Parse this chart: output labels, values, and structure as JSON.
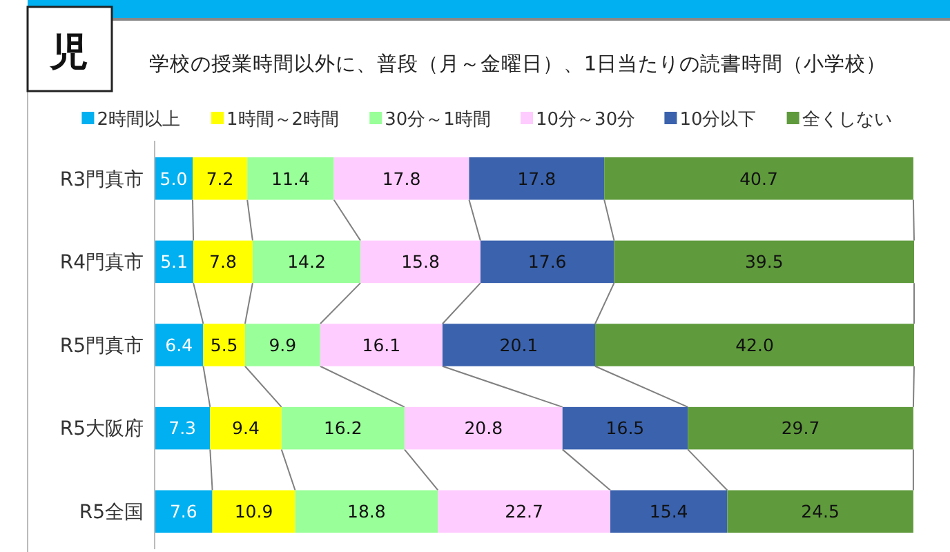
{
  "chart_data": {
    "type": "bar",
    "orientation": "horizontal",
    "stacked": true,
    "legend": "top",
    "title": "学校の授業時間以外に、普段（月～金曜日）、1日当たりの読書時間（小学校）",
    "annotations": [
      "児"
    ],
    "categories": [
      "R3門真市",
      "R4門真市",
      "R5門真市",
      "R5大阪府",
      "R5全国"
    ],
    "series": [
      {
        "name": "2時間以上",
        "color": "#00b0f0",
        "values": [
          5.0,
          5.1,
          6.4,
          7.3,
          7.6
        ],
        "value_labels": [
          "5.0",
          "5.1",
          "6.4",
          "7.3",
          "7.6"
        ]
      },
      {
        "name": "1時間～2時間",
        "color": "#ffff00",
        "values": [
          7.2,
          7.8,
          5.5,
          9.4,
          10.9
        ],
        "value_labels": [
          "7.2",
          "7.8",
          "5.5",
          "9.4",
          "10.9"
        ]
      },
      {
        "name": "30分～1時間",
        "color": "#99ff99",
        "values": [
          11.4,
          14.2,
          9.9,
          16.2,
          18.8
        ],
        "value_labels": [
          "11.4",
          "14.2",
          "9.9",
          "16.2",
          "18.8"
        ]
      },
      {
        "name": "10分～30分",
        "color": "#ffccff",
        "values": [
          17.8,
          15.8,
          16.1,
          20.8,
          22.7
        ],
        "value_labels": [
          "17.8",
          "15.8",
          "16.1",
          "20.8",
          "22.7"
        ]
      },
      {
        "name": "10分以下",
        "color": "#3a62ad",
        "values": [
          17.8,
          17.6,
          20.1,
          16.5,
          15.4
        ],
        "value_labels": [
          "17.8",
          "17.6",
          "20.1",
          "16.5",
          "15.4"
        ]
      },
      {
        "name": "全くしない",
        "color": "#5f9a3c",
        "values": [
          40.7,
          39.5,
          42.0,
          29.7,
          24.5
        ],
        "value_labels": [
          "40.7",
          "39.5",
          "42.0",
          "29.7",
          "24.5"
        ]
      }
    ]
  }
}
